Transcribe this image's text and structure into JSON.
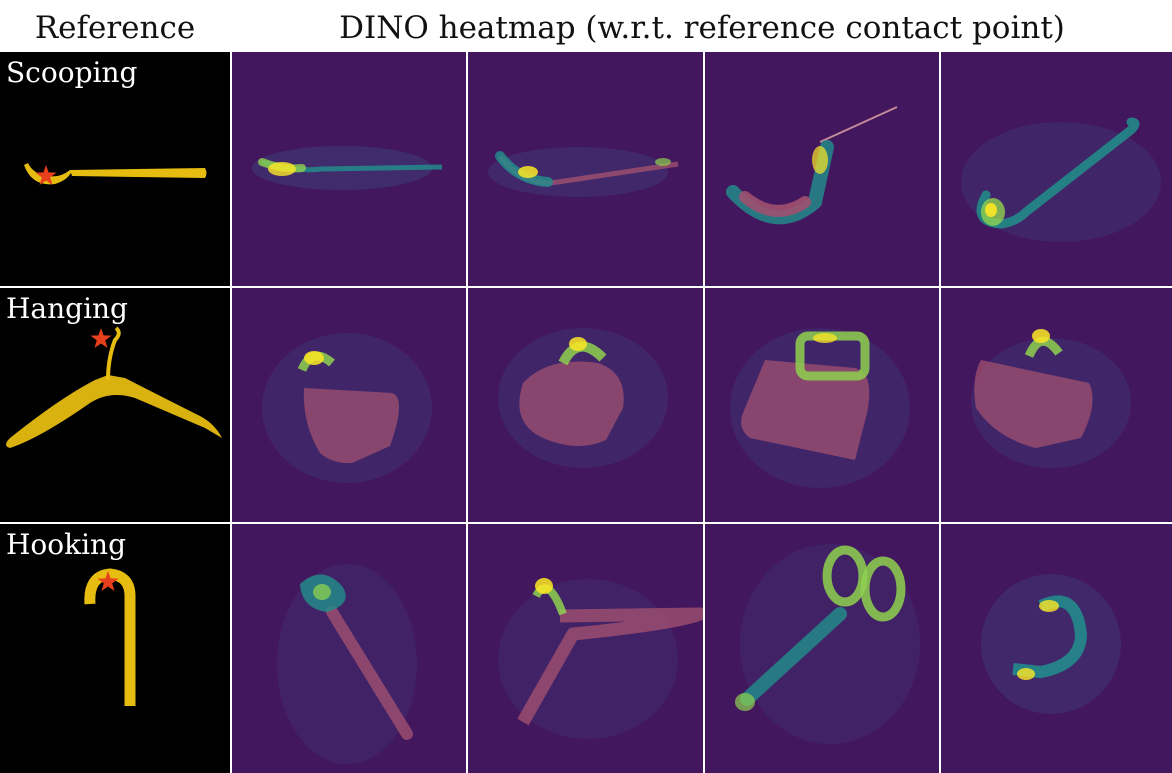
{
  "header": {
    "reference": "Reference",
    "dino": "DINO heatmap (w.r.t. reference contact point)"
  },
  "rows": [
    {
      "task": "Scooping",
      "reference_object": "spoon-icon",
      "heatmaps": [
        "spatula-heatmap",
        "spoon-heatmap",
        "ladle-heatmap",
        "ladle-long-heatmap"
      ]
    },
    {
      "task": "Hanging",
      "reference_object": "hanger-icon",
      "heatmaps": [
        "mug-heatmap",
        "mug-heatmap",
        "bag-heatmap",
        "mug-heatmap"
      ]
    },
    {
      "task": "Hooking",
      "reference_object": "cane-icon",
      "heatmaps": [
        "wrench-heatmap",
        "hanger-heatmap",
        "scissors-heatmap",
        "handle-heatmap"
      ]
    }
  ],
  "colors": {
    "heatmap_bg": "#43175e",
    "reference_bg": "#000000",
    "reference_object": "#e6bc10",
    "star": "#e8401c",
    "heat_low": "#3b4f8a",
    "heat_mid": "#21918c",
    "heat_high": "#fde725",
    "heat_object": "#a0506f"
  }
}
